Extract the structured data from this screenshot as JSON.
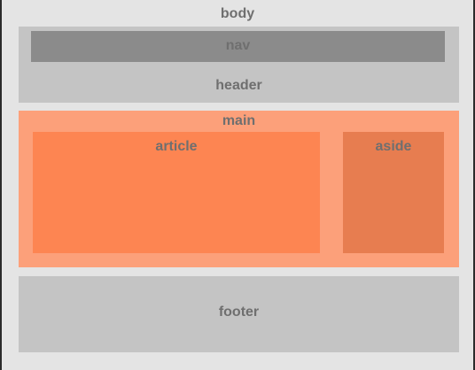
{
  "labels": {
    "body": "body",
    "header": "header",
    "nav": "nav",
    "main": "main",
    "article": "article",
    "aside": "aside",
    "footer": "footer"
  },
  "colors": {
    "background": "#2b2b2b",
    "body": "#e4e4e4",
    "header": "#c4c4c4",
    "nav": "#8b8b8b",
    "main": "#fca07a",
    "article": "#fd8552",
    "aside": "#e77d50",
    "footer": "#c4c4c4",
    "label_text": "#6f6f6f"
  }
}
